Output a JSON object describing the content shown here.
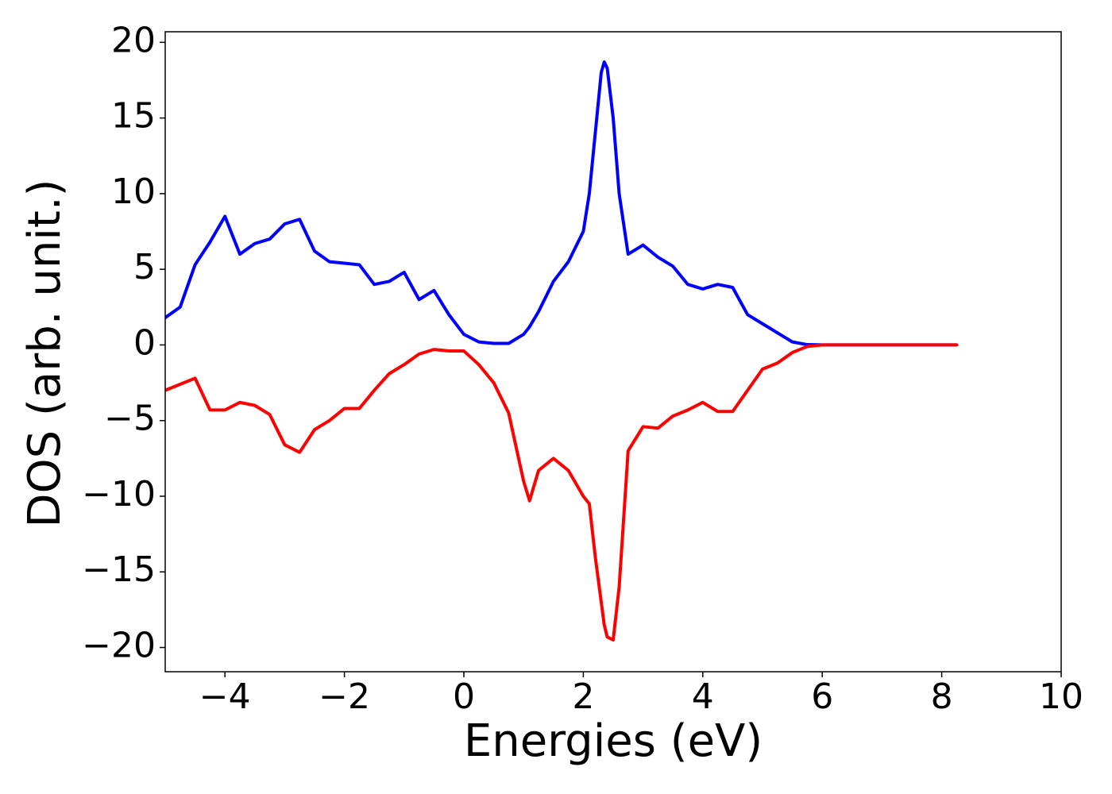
{
  "chart_data": {
    "type": "line",
    "x_label": "Energies (eV)",
    "y_label": "DOS (arb. unit.)",
    "xlim": [
      -5,
      10
    ],
    "ylim": [
      -21.6,
      20.7
    ],
    "xticks": [
      {
        "value": -4,
        "label": "−4"
      },
      {
        "value": -2,
        "label": "−2"
      },
      0,
      2,
      4,
      6,
      8,
      10
    ],
    "yticks": [
      {
        "value": -20,
        "label": "−20"
      },
      {
        "value": -15,
        "label": "−15"
      },
      {
        "value": -10,
        "label": "−10"
      },
      {
        "value": -5,
        "label": "−5"
      },
      0,
      5,
      10,
      15,
      20
    ],
    "x": [
      -5,
      -4.75,
      -4.5,
      -4.25,
      -4,
      -3.75,
      -3.5,
      -3.25,
      -3,
      -2.75,
      -2.5,
      -2.25,
      -2,
      -1.75,
      -1.5,
      -1.25,
      -1,
      -0.75,
      -0.5,
      -0.25,
      0,
      0.25,
      0.5,
      0.75,
      1,
      1.1,
      1.25,
      1.5,
      1.75,
      2,
      2.1,
      2.2,
      2.3,
      2.35,
      2.4,
      2.5,
      2.6,
      2.75,
      3,
      3.25,
      3.5,
      3.75,
      4,
      4.25,
      4.5,
      4.75,
      5,
      5.25,
      5.5,
      5.75,
      6,
      6.25,
      6.5,
      6.75,
      7,
      7.25,
      7.5,
      7.75,
      8,
      8.25
    ],
    "series": [
      {
        "color": "#0000ff",
        "values": [
          1.8,
          2.5,
          5.3,
          6.8,
          8.5,
          6.0,
          6.7,
          7.0,
          8.0,
          8.3,
          6.2,
          5.5,
          5.4,
          5.3,
          4.0,
          4.2,
          4.8,
          3.0,
          3.6,
          2.0,
          0.7,
          0.2,
          0.1,
          0.1,
          0.7,
          1.2,
          2.2,
          4.2,
          5.5,
          7.5,
          10,
          14,
          18,
          18.7,
          18.3,
          15,
          10,
          6,
          6.6,
          5.8,
          5.2,
          4,
          3.7,
          4.0,
          3.8,
          2.0,
          1.4,
          0.8,
          0.2,
          0.02,
          0,
          0,
          0,
          0,
          0,
          0,
          0,
          0,
          0,
          0
        ]
      },
      {
        "color": "#ff0000",
        "values": [
          -3.0,
          -2.6,
          -2.2,
          -4.3,
          -4.3,
          -3.8,
          -4.0,
          -4.6,
          -6.6,
          -7.1,
          -5.6,
          -5.0,
          -4.2,
          -4.2,
          -3.0,
          -1.9,
          -1.3,
          -0.6,
          -0.3,
          -0.4,
          -0.4,
          -1.3,
          -2.5,
          -4.5,
          -9.0,
          -10.3,
          -8.3,
          -7.5,
          -8.3,
          -10,
          -10.5,
          -14,
          -17,
          -18.5,
          -19.3,
          -19.5,
          -16,
          -7,
          -5.4,
          -5.5,
          -4.7,
          -4.3,
          -3.8,
          -4.4,
          -4.4,
          -3.0,
          -1.6,
          -1.2,
          -0.5,
          -0.1,
          0,
          0,
          0,
          0,
          0,
          0,
          0,
          0,
          0,
          0
        ]
      }
    ]
  }
}
